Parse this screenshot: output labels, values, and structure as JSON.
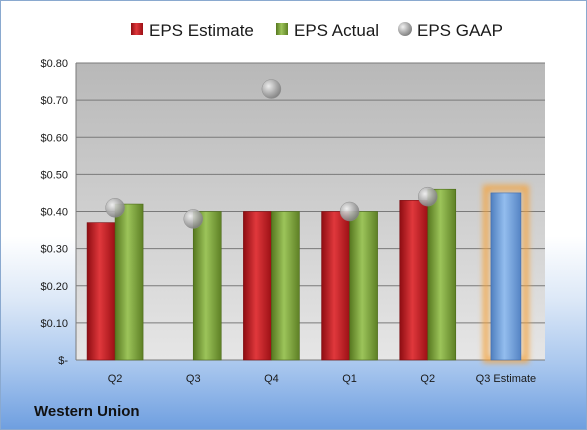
{
  "company": "Western Union",
  "legend": {
    "estimate": "EPS Estimate",
    "actual": "EPS Actual",
    "gaap": "EPS GAAP"
  },
  "chart_data": {
    "type": "bar",
    "categories": [
      "Q2",
      "Q3",
      "Q4",
      "Q1",
      "Q2",
      "Q3 Estimate"
    ],
    "series": [
      {
        "name": "EPS Estimate",
        "values": [
          0.37,
          null,
          0.4,
          0.4,
          0.43,
          null
        ],
        "color": "#c0161c"
      },
      {
        "name": "EPS Actual",
        "values": [
          0.42,
          0.4,
          0.4,
          0.4,
          0.46,
          null
        ],
        "color": "#7aa23b"
      },
      {
        "name": "EPS GAAP",
        "type": "scatter",
        "values": [
          0.41,
          0.38,
          0.73,
          0.4,
          0.44,
          null
        ],
        "color": "#a8a8a8"
      },
      {
        "name": "Q3 Estimate",
        "values": [
          null,
          null,
          null,
          null,
          null,
          0.45
        ],
        "color": "#6e9fd9"
      }
    ],
    "ylim": [
      0,
      0.8
    ],
    "yticks": [
      0,
      0.1,
      0.2,
      0.3,
      0.4,
      0.5,
      0.6,
      0.7,
      0.8
    ],
    "ytick_labels": [
      "$-",
      "$0.10",
      "$0.20",
      "$0.30",
      "$0.40",
      "$0.50",
      "$0.60",
      "$0.70",
      "$0.80"
    ],
    "grid": true,
    "legend_position": "top"
  }
}
